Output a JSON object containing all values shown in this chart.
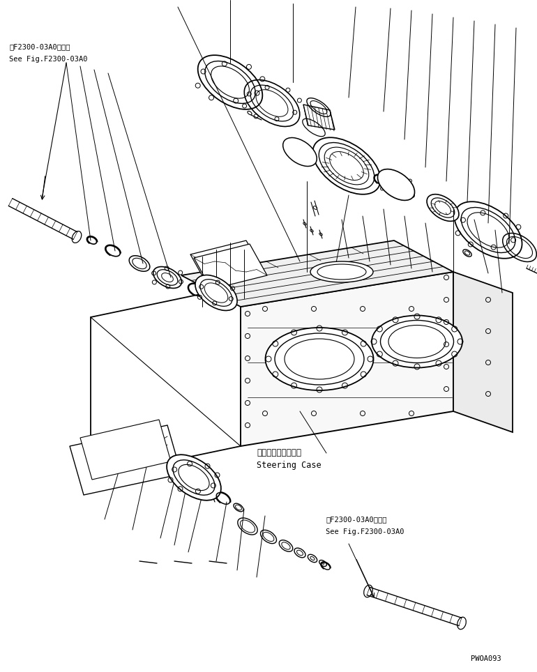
{
  "background_color": "#ffffff",
  "line_color": "#000000",
  "fig_width": 7.7,
  "fig_height": 9.64,
  "dpi": 100,
  "label_top_left_line1": "第F2300-03A0図参照",
  "label_top_left_line2": "See Fig.F2300-03A0",
  "label_steering_case_jp": "ステアリングケース",
  "label_steering_case_en": "Steering Case",
  "label_bottom_right_line1": "第F2300-03A0図参照",
  "label_bottom_right_line2": "See Fig.F2300-03A0",
  "watermark": "PWOA093"
}
